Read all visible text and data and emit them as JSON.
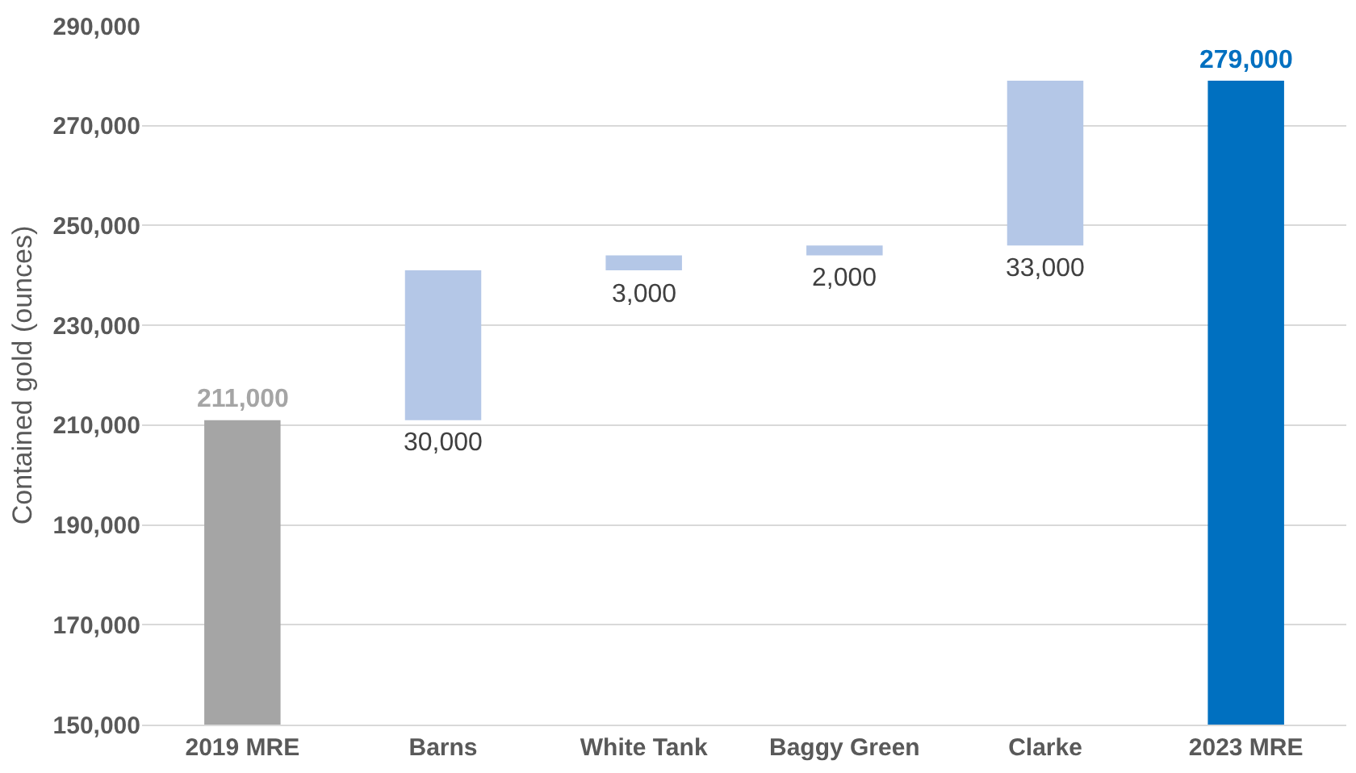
{
  "chart_data": {
    "type": "bar",
    "ylabel": "Contained gold (ounces)",
    "categories": [
      "2019 MRE",
      "Barns",
      "White Tank",
      "Baggy Green",
      "Clarke",
      "2023 MRE"
    ],
    "values": [
      211000,
      30000,
      3000,
      2000,
      33000,
      279000
    ],
    "base": [
      null,
      211000,
      241000,
      244000,
      246000,
      null
    ],
    "colors": [
      "#a5a5a5",
      "#b4c7e7",
      "#b4c7e7",
      "#b4c7e7",
      "#b4c7e7",
      "#0070c0"
    ],
    "value_labels": [
      "211,000",
      "30,000",
      "3,000",
      "2,000",
      "33,000",
      "279,000"
    ],
    "ylim": [
      150000,
      290000
    ],
    "yticks": [
      {
        "value": 150000,
        "label": "150,000"
      },
      {
        "value": 170000,
        "label": "170,000"
      },
      {
        "value": 190000,
        "label": "190,000"
      },
      {
        "value": 210000,
        "label": "210,000"
      },
      {
        "value": 230000,
        "label": "230,000"
      },
      {
        "value": 250000,
        "label": "250,000"
      },
      {
        "value": 270000,
        "label": "270,000"
      },
      {
        "value": 290000,
        "label": "290,000"
      }
    ],
    "grid": "y"
  }
}
